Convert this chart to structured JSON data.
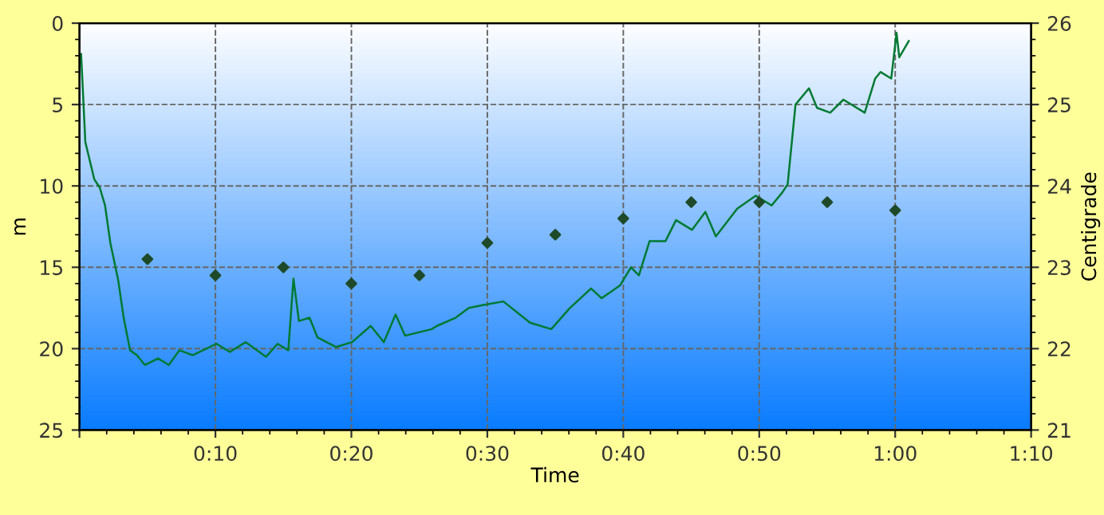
{
  "chart_data": {
    "type": "line",
    "xlabel": "Time",
    "ylabel": "m",
    "y2label": "Centigrade",
    "xlim": [
      0,
      70
    ],
    "xticks": [
      {
        "value": 0,
        "label": null
      },
      {
        "value": 10,
        "label": "0:10"
      },
      {
        "value": 20,
        "label": "0:20"
      },
      {
        "value": 30,
        "label": "0:30"
      },
      {
        "value": 40,
        "label": "0:40"
      },
      {
        "value": 50,
        "label": "0:50"
      },
      {
        "value": 60,
        "label": "1:00"
      },
      {
        "value": 70,
        "label": "1:10"
      }
    ],
    "ylim": [
      25,
      0
    ],
    "yticks": [
      0,
      5,
      10,
      15,
      20,
      25
    ],
    "y2lim": [
      21,
      26
    ],
    "y2ticks": [
      21,
      22,
      23,
      24,
      25,
      26
    ],
    "grid": true,
    "legend": false,
    "series": [
      {
        "color": "#007a33",
        "marker": "none",
        "line_style": "solid",
        "x": [
          0.12,
          0.43,
          1.09,
          1.49,
          1.88,
          2.27,
          2.85,
          3.25,
          3.72,
          4.22,
          4.81,
          5.78,
          6.57,
          7.35,
          8.32,
          10.08,
          11.06,
          12.23,
          13.72,
          14.57,
          15.36,
          15.74,
          16.14,
          16.92,
          17.5,
          18.88,
          20.05,
          21.42,
          22.39,
          23.25,
          23.95,
          25.91,
          26.3,
          27.67,
          28.64,
          29.81,
          31.18,
          33.14,
          34.7,
          36.07,
          37.63,
          38.41,
          39.78,
          40.56,
          41.15,
          41.93,
          43.1,
          43.88,
          45.06,
          46.04,
          46.81,
          48.38,
          49.74,
          50.91,
          51.7,
          52.09,
          52.67,
          53.66,
          54.25,
          55.22,
          56.19,
          57.76,
          58.53,
          58.93,
          59.71,
          60.1,
          60.3,
          61.0
        ],
        "values": [
          1.9,
          7.3,
          9.6,
          10.1,
          11.2,
          13.5,
          15.8,
          18.1,
          20.1,
          20.4,
          21.0,
          20.6,
          21.0,
          20.1,
          20.4,
          19.7,
          20.2,
          19.6,
          20.5,
          19.7,
          20.1,
          15.7,
          18.3,
          18.1,
          19.3,
          19.9,
          19.6,
          18.6,
          19.6,
          17.9,
          19.2,
          18.8,
          18.6,
          18.1,
          17.5,
          17.3,
          17.1,
          18.4,
          18.8,
          17.5,
          16.3,
          16.9,
          16.1,
          15.0,
          15.5,
          13.4,
          13.4,
          12.1,
          12.7,
          11.6,
          13.1,
          11.4,
          10.6,
          11.2,
          10.4,
          9.9,
          5.0,
          4.0,
          5.2,
          5.5,
          4.7,
          5.5,
          3.4,
          3.0,
          3.4,
          0.6,
          2.1,
          1.1
        ]
      },
      {
        "type": "scatter",
        "axis": "y2",
        "color": "#1f4a2a",
        "marker": "diamond",
        "x": [
          5,
          10,
          15,
          20,
          25,
          30,
          35,
          40,
          45,
          50,
          55,
          60
        ],
        "values": [
          23.1,
          22.9,
          23.0,
          22.8,
          22.9,
          23.3,
          23.4,
          23.6,
          23.8,
          23.8,
          23.8,
          23.7
        ]
      }
    ]
  }
}
